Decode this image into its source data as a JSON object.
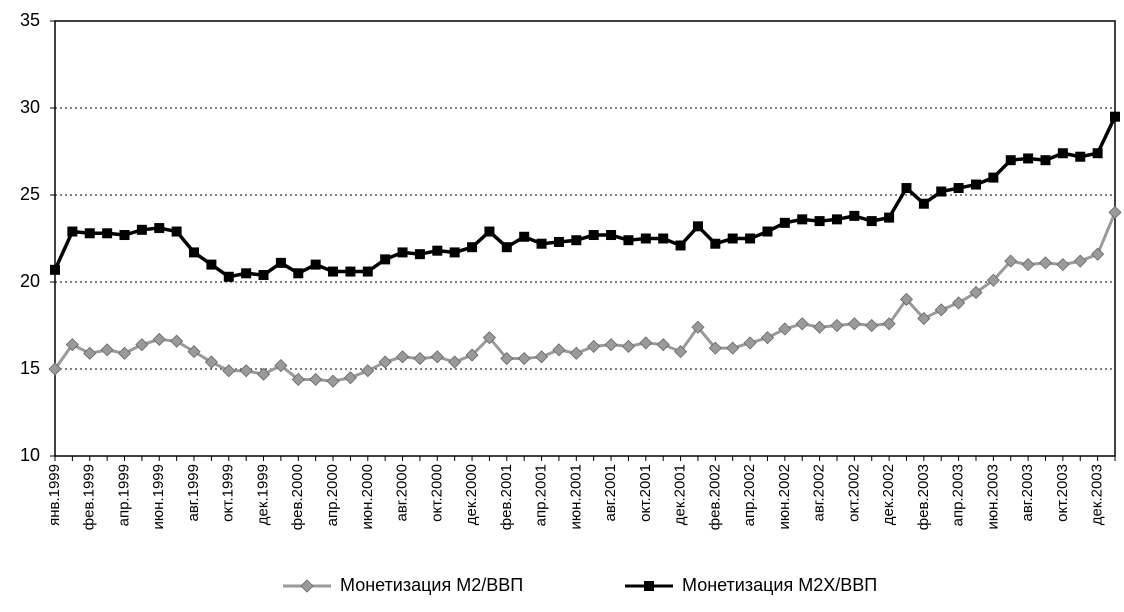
{
  "chart_data": {
    "type": "line",
    "categories": [
      "янв.1999",
      null,
      "фев.1999",
      null,
      "апр.1999",
      null,
      "июн.1999",
      null,
      "авг.1999",
      null,
      "окт.1999",
      null,
      "дек.1999",
      null,
      "фев.2000",
      null,
      "апр.2000",
      null,
      "июн.2000",
      null,
      "авг.2000",
      null,
      "окт.2000",
      null,
      "дек.2000",
      null,
      "фев.2001",
      null,
      "апр.2001",
      null,
      "июн.2001",
      null,
      "авг.2001",
      null,
      "окт.2001",
      null,
      "дек.2001",
      null,
      "фев.2002",
      null,
      "апр.2002",
      null,
      "июн.2002",
      null,
      "авг.2002",
      null,
      "окт.2002",
      null,
      "дек.2002",
      null,
      "фев.2003",
      null,
      "апр.2003",
      null,
      "июн.2003",
      null,
      "авг.2003",
      null,
      "окт.2003",
      null,
      "дек.2003",
      null
    ],
    "series": [
      {
        "name": "Монетизация М2/ВВП",
        "color": "#9a9a9a",
        "marker": "diamond",
        "values": [
          15.0,
          16.4,
          15.9,
          16.1,
          15.9,
          16.4,
          16.7,
          16.6,
          16.0,
          15.4,
          14.9,
          14.9,
          14.7,
          15.2,
          14.4,
          14.4,
          14.3,
          14.5,
          14.9,
          15.4,
          15.7,
          15.6,
          15.7,
          15.4,
          15.8,
          16.8,
          15.6,
          15.6,
          15.7,
          16.1,
          15.9,
          16.3,
          16.4,
          16.3,
          16.5,
          16.4,
          16.0,
          17.4,
          16.2,
          16.2,
          16.5,
          16.8,
          17.3,
          17.6,
          17.4,
          17.5,
          17.6,
          17.5,
          17.6,
          19.0,
          17.9,
          18.4,
          18.8,
          19.4,
          20.1,
          21.2,
          21.0,
          21.1,
          21.0,
          21.2,
          21.6,
          24.0
        ]
      },
      {
        "name": "Монетизация М2Х/ВВП",
        "color": "#000000",
        "marker": "square",
        "values": [
          20.7,
          22.9,
          22.8,
          22.8,
          22.7,
          23.0,
          23.1,
          22.9,
          21.7,
          21.0,
          20.3,
          20.5,
          20.4,
          21.1,
          20.5,
          21.0,
          20.6,
          20.6,
          20.6,
          21.3,
          21.7,
          21.6,
          21.8,
          21.7,
          22.0,
          22.9,
          22.0,
          22.6,
          22.2,
          22.3,
          22.4,
          22.7,
          22.7,
          22.4,
          22.5,
          22.5,
          22.1,
          23.2,
          22.2,
          22.5,
          22.5,
          22.9,
          23.4,
          23.6,
          23.5,
          23.6,
          23.8,
          23.5,
          23.7,
          25.4,
          24.5,
          25.2,
          25.4,
          25.6,
          26.0,
          27.0,
          27.1,
          27.0,
          27.4,
          27.2,
          27.4,
          29.5
        ]
      }
    ],
    "ylim": [
      10,
      35
    ],
    "yticks": [
      10,
      15,
      20,
      25,
      30,
      35
    ],
    "grid": true,
    "legend": "bottom"
  }
}
